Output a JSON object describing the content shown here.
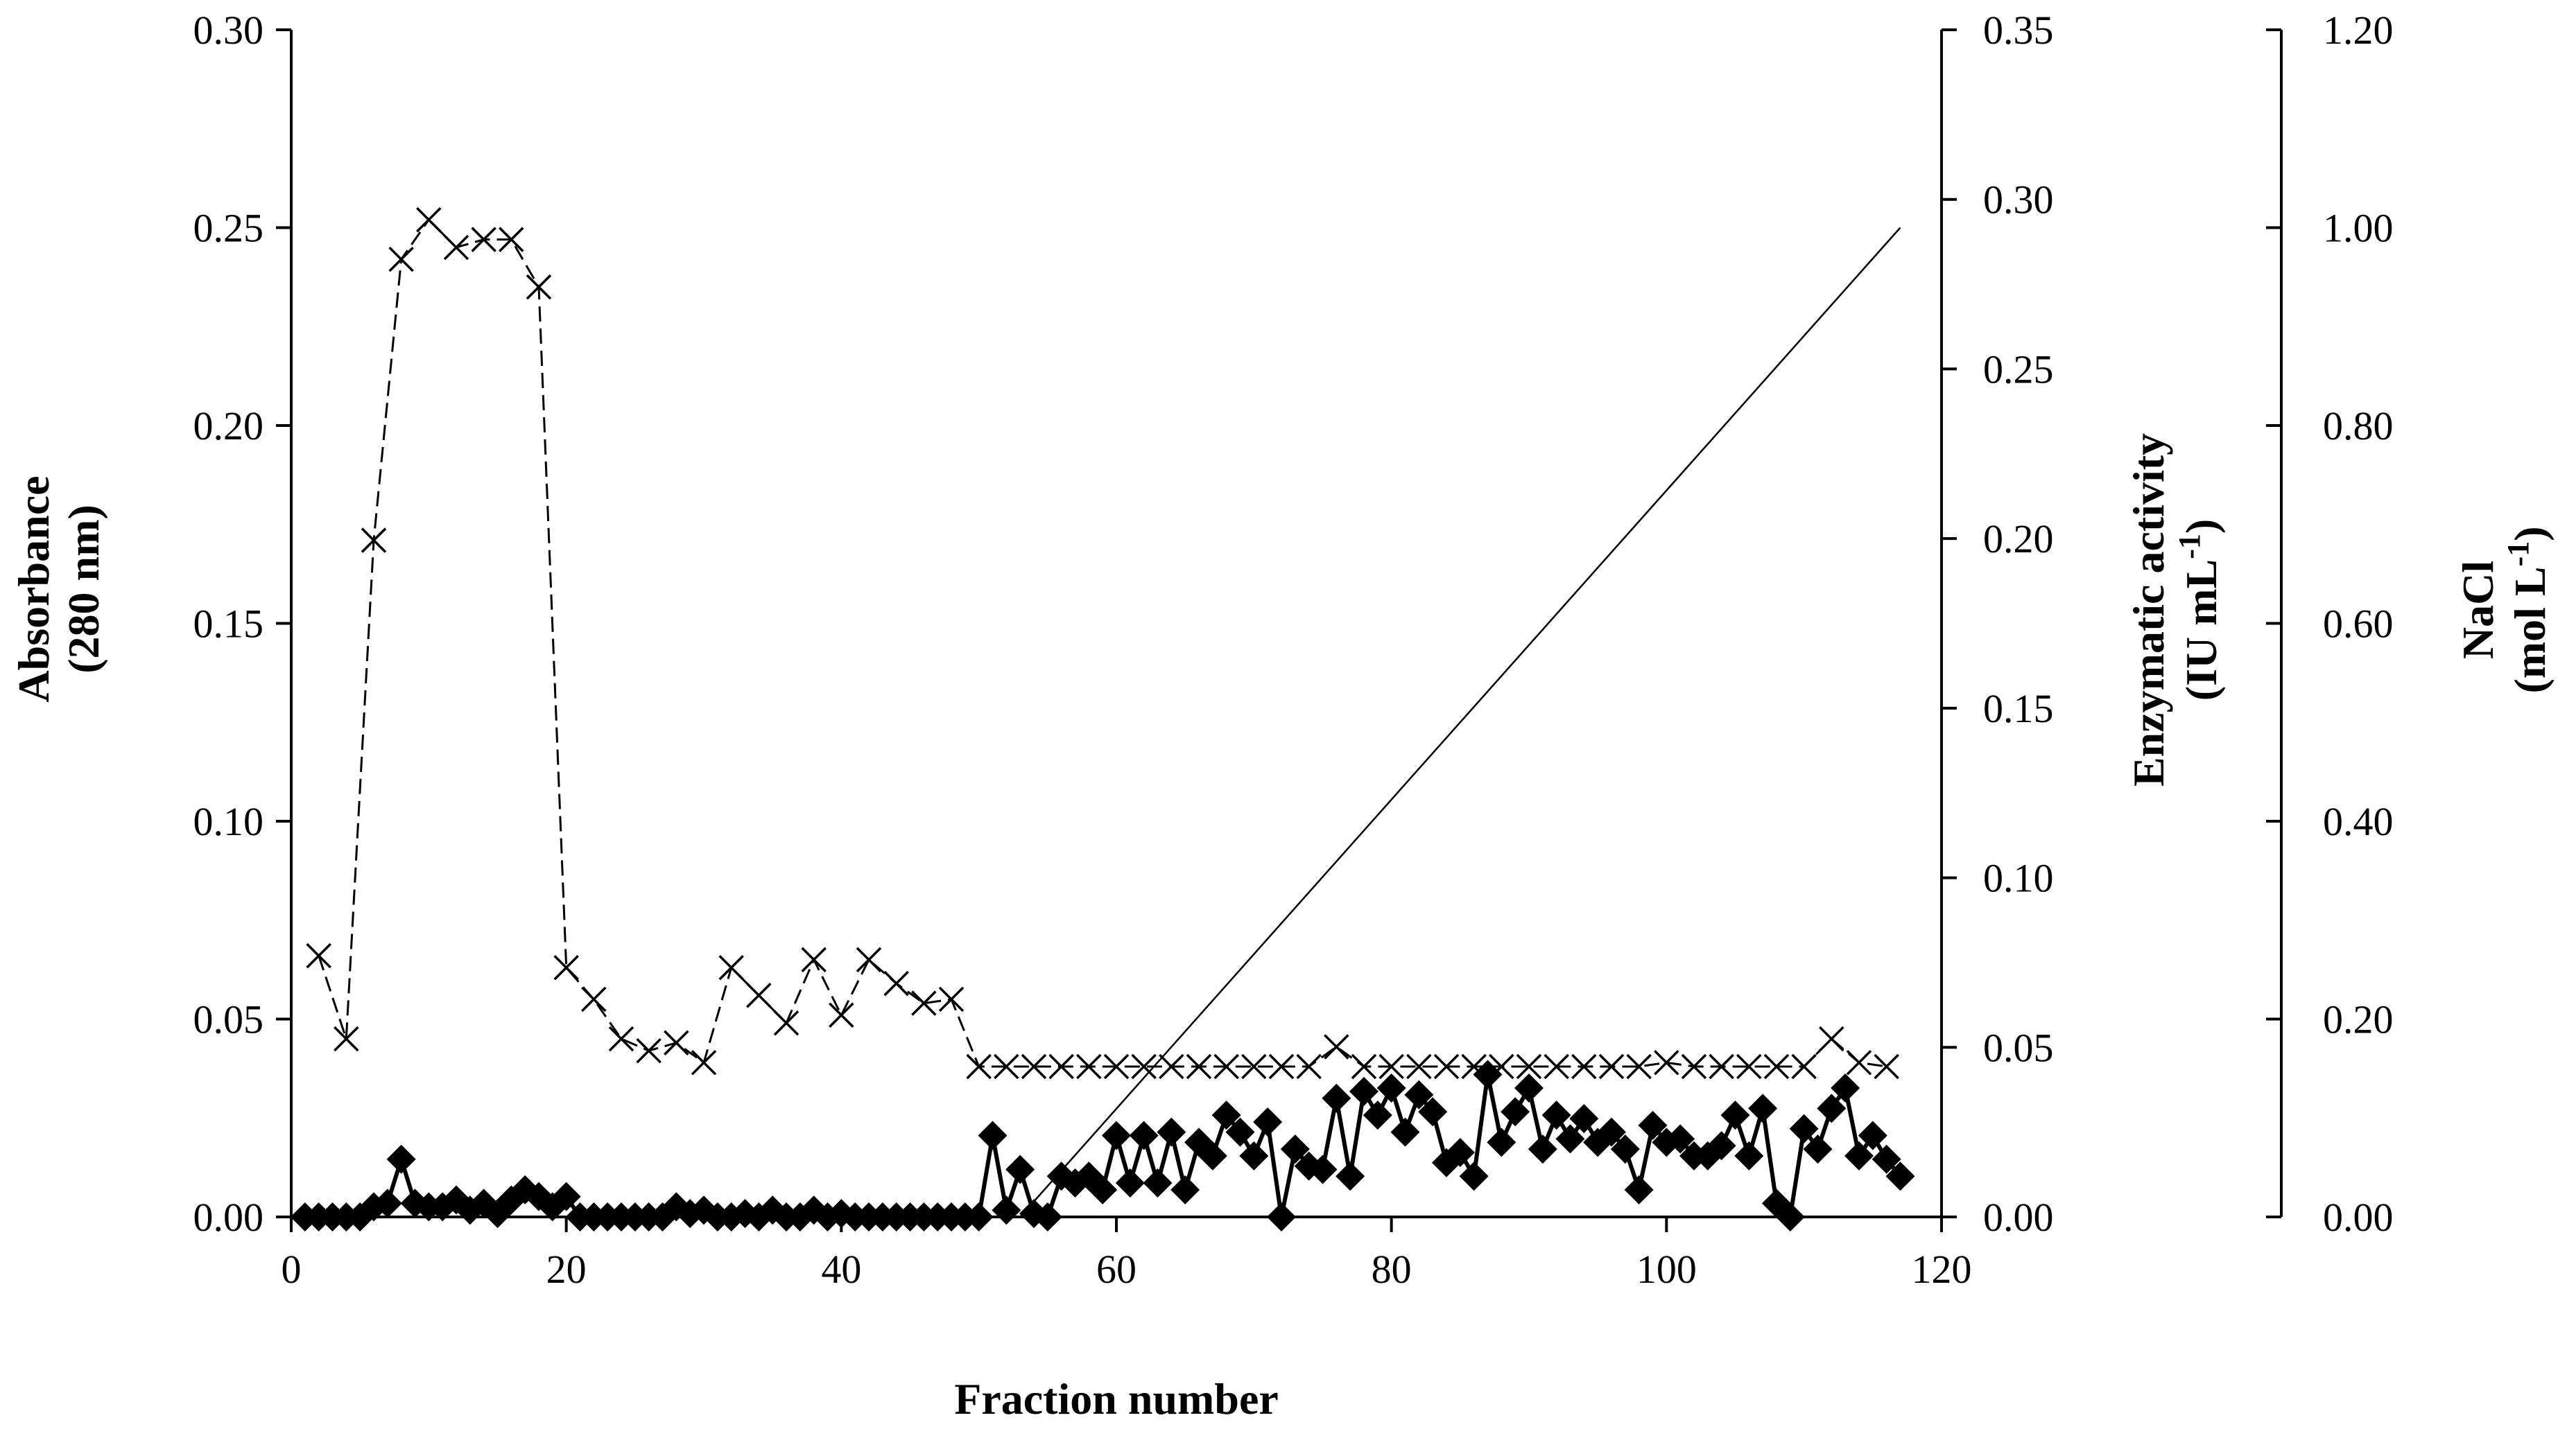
{
  "chart_data": {
    "type": "line",
    "xlabel": "Fraction number",
    "xlim": [
      0,
      120
    ],
    "xticks": [
      0,
      20,
      40,
      60,
      80,
      100,
      120
    ],
    "axes": {
      "left": {
        "label_line1": "Absorbance",
        "label_line2": "(280 nm)",
        "ylim": [
          0,
          0.3
        ],
        "ticks": [
          "0.00",
          "0.05",
          "0.10",
          "0.15",
          "0.20",
          "0.25",
          "0.30"
        ]
      },
      "right1": {
        "label_line1": "Enzymatic activity",
        "label_line2": "(IU mL",
        "label_sup": "-1",
        "label_close": ")",
        "ylim": [
          0,
          0.35
        ],
        "ticks": [
          "0.00",
          "0.05",
          "0.10",
          "0.15",
          "0.20",
          "0.25",
          "0.30",
          "0.35"
        ]
      },
      "right2": {
        "label_line1": "NaCl",
        "label_line2": "(mol L",
        "label_sup": "-1",
        "label_close": ")",
        "ylim": [
          0,
          1.2
        ],
        "ticks": [
          "0.00",
          "0.20",
          "0.40",
          "0.60",
          "0.80",
          "1.00",
          "1.20"
        ]
      }
    },
    "series": [
      {
        "axis": "left",
        "marker": "cross",
        "line": "dashed",
        "color": "#000000",
        "x": [
          2,
          4,
          6,
          8,
          10,
          12,
          14,
          16,
          18,
          20,
          22,
          24,
          26,
          28,
          30,
          32,
          34,
          36,
          38,
          40,
          42,
          44,
          46,
          48,
          50,
          52,
          54,
          56,
          58,
          60,
          62,
          64,
          66,
          68,
          70,
          72,
          74,
          76,
          78,
          80,
          82,
          84,
          86,
          88,
          90,
          92,
          94,
          96,
          98,
          100,
          102,
          104,
          106,
          108,
          110,
          112,
          114,
          116
        ],
        "y": [
          0.066,
          0.045,
          0.171,
          0.242,
          0.252,
          0.245,
          0.247,
          0.247,
          0.235,
          0.063,
          0.055,
          0.045,
          0.042,
          0.044,
          0.039,
          0.063,
          0.056,
          0.049,
          0.065,
          0.051,
          0.065,
          0.059,
          0.054,
          0.055,
          0.038,
          0.038,
          0.038,
          0.038,
          0.038,
          0.038,
          0.038,
          0.038,
          0.038,
          0.038,
          0.038,
          0.038,
          0.038,
          0.043,
          0.038,
          0.038,
          0.038,
          0.038,
          0.038,
          0.038,
          0.038,
          0.038,
          0.038,
          0.038,
          0.038,
          0.039,
          0.038,
          0.038,
          0.038,
          0.038,
          0.038,
          0.045,
          0.039,
          0.038
        ]
      },
      {
        "axis": "right1",
        "marker": "diamond",
        "line": "solid",
        "color": "#000000",
        "x": [
          1,
          2,
          3,
          4,
          5,
          6,
          7,
          8,
          9,
          10,
          11,
          12,
          13,
          14,
          15,
          16,
          17,
          18,
          19,
          20,
          21,
          22,
          23,
          24,
          25,
          26,
          27,
          28,
          29,
          30,
          31,
          32,
          33,
          34,
          35,
          36,
          37,
          38,
          39,
          40,
          41,
          42,
          43,
          44,
          45,
          46,
          47,
          48,
          49,
          50,
          51,
          52,
          53,
          54,
          55,
          56,
          57,
          58,
          59,
          60,
          61,
          62,
          63,
          64,
          65,
          66,
          67,
          68,
          69,
          70,
          71,
          72,
          73,
          74,
          75,
          76,
          77,
          78,
          79,
          80,
          81,
          82,
          83,
          84,
          85,
          86,
          87,
          88,
          89,
          90,
          91,
          92,
          93,
          94,
          95,
          96,
          97,
          98,
          99,
          100,
          101,
          102,
          103,
          104,
          105,
          106,
          107,
          108,
          109,
          110,
          111,
          112,
          113,
          114,
          115,
          116,
          117
        ],
        "y": [
          0.0,
          0.0,
          0.0,
          0.0,
          0.0,
          0.003,
          0.004,
          0.017,
          0.004,
          0.003,
          0.003,
          0.005,
          0.002,
          0.004,
          0.001,
          0.005,
          0.008,
          0.006,
          0.003,
          0.006,
          0.0,
          0.0,
          0.0,
          0.0,
          0.0,
          0.0,
          0.0,
          0.003,
          0.001,
          0.002,
          0.0,
          0.0,
          0.001,
          0.0,
          0.002,
          0.0,
          0.0,
          0.002,
          0.0,
          0.001,
          0.0,
          0.0,
          0.0,
          0.0,
          0.0,
          0.0,
          0.0,
          0.0,
          0.0,
          0.0,
          0.024,
          0.002,
          0.014,
          0.001,
          0.0,
          0.012,
          0.01,
          0.012,
          0.008,
          0.024,
          0.01,
          0.024,
          0.01,
          0.025,
          0.008,
          0.022,
          0.018,
          0.03,
          0.025,
          0.018,
          0.028,
          0.0,
          0.02,
          0.015,
          0.014,
          0.035,
          0.012,
          0.037,
          0.03,
          0.038,
          0.025,
          0.036,
          0.031,
          0.016,
          0.019,
          0.012,
          0.042,
          0.022,
          0.031,
          0.038,
          0.02,
          0.03,
          0.023,
          0.029,
          0.022,
          0.025,
          0.02,
          0.008,
          0.027,
          0.022,
          0.023,
          0.018,
          0.018,
          0.021,
          0.03,
          0.018,
          0.032,
          0.004,
          0.0,
          0.026,
          0.02,
          0.032,
          0.038,
          0.018,
          0.024,
          0.017,
          0.012
        ]
      },
      {
        "axis": "right2",
        "marker": "none",
        "line": "solid-thin",
        "color": "#000000",
        "x": [
          53,
          117
        ],
        "y": [
          0.0,
          1.0
        ]
      }
    ]
  }
}
